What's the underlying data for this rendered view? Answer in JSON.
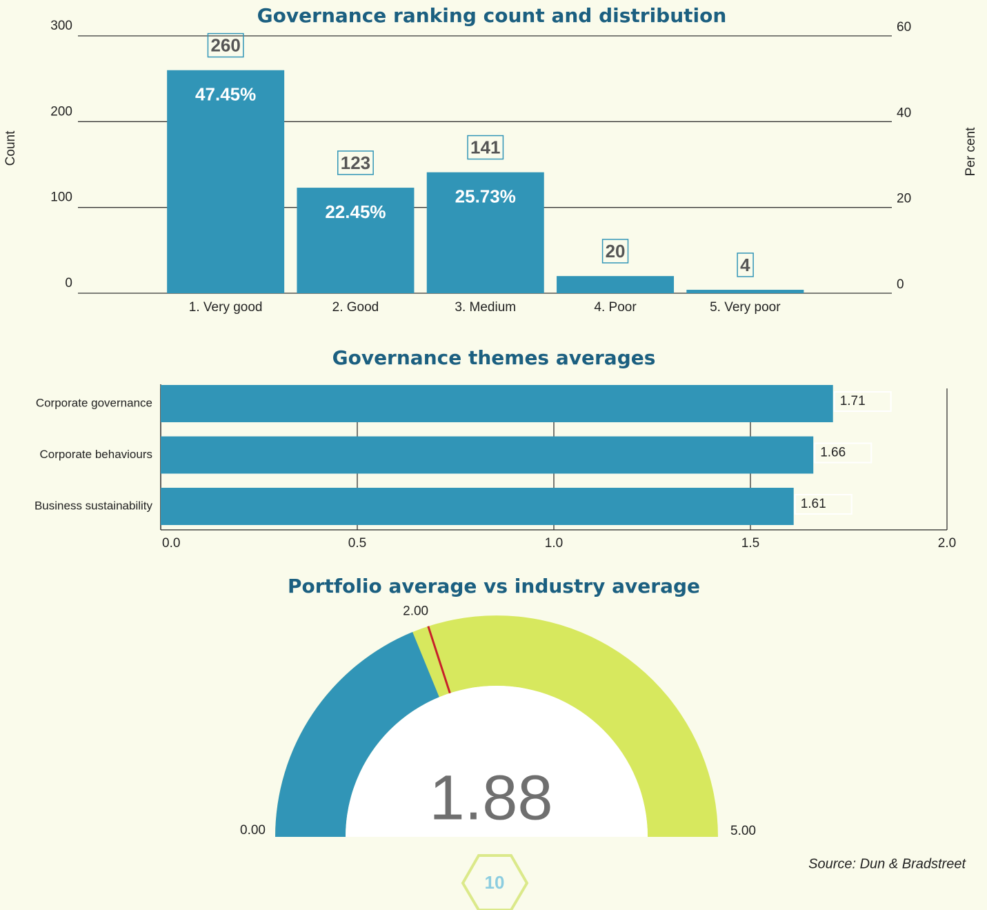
{
  "chart_data": [
    {
      "type": "bar",
      "title": "Governance ranking count and distribution",
      "y_label": "Count",
      "y2_label": "Per cent",
      "categories": [
        "1. Very good",
        "2. Good",
        "3. Medium",
        "4. Poor",
        "5. Very poor"
      ],
      "values": [
        260,
        123,
        141,
        20,
        4
      ],
      "percents": [
        47.45,
        22.45,
        25.73,
        null,
        null
      ],
      "percent_labels": [
        "47.45%",
        "22.45%",
        "25.73%",
        null,
        null
      ],
      "color": "#3195b7",
      "ylim": [
        0,
        300
      ],
      "yticks": [
        0,
        100,
        200,
        300
      ],
      "y2lim": [
        0,
        60
      ],
      "y2ticks": [
        0,
        20,
        40,
        60
      ],
      "grid": true
    },
    {
      "type": "hbar",
      "title": "Governance themes averages",
      "categories": [
        "Corporate governance",
        "Corporate behaviours",
        "Business sustainability"
      ],
      "values": [
        1.71,
        1.66,
        1.61
      ],
      "color": "#3195b7",
      "xlim": [
        0,
        2
      ],
      "xticks": [
        {
          "value": 0,
          "label": "0.0"
        },
        0.5,
        {
          "value": 1,
          "label": "1.0"
        },
        1.5,
        {
          "value": 2,
          "label": "2.0"
        }
      ],
      "grid": true
    },
    {
      "type": "gauge",
      "title": "Portfolio average vs industry average",
      "value": 1.88,
      "color": "#3195b7",
      "track_color": "#d7e85e",
      "marker_color": "#c8202a",
      "range": [
        {
          "value": 0,
          "label": "0.00"
        },
        {
          "value": 5,
          "label": "5.00"
        }
      ],
      "marker": {
        "value": 2,
        "label": "2.00"
      }
    }
  ],
  "footer": {
    "source": "Source: Dun & Bradstreet",
    "page": "10"
  }
}
